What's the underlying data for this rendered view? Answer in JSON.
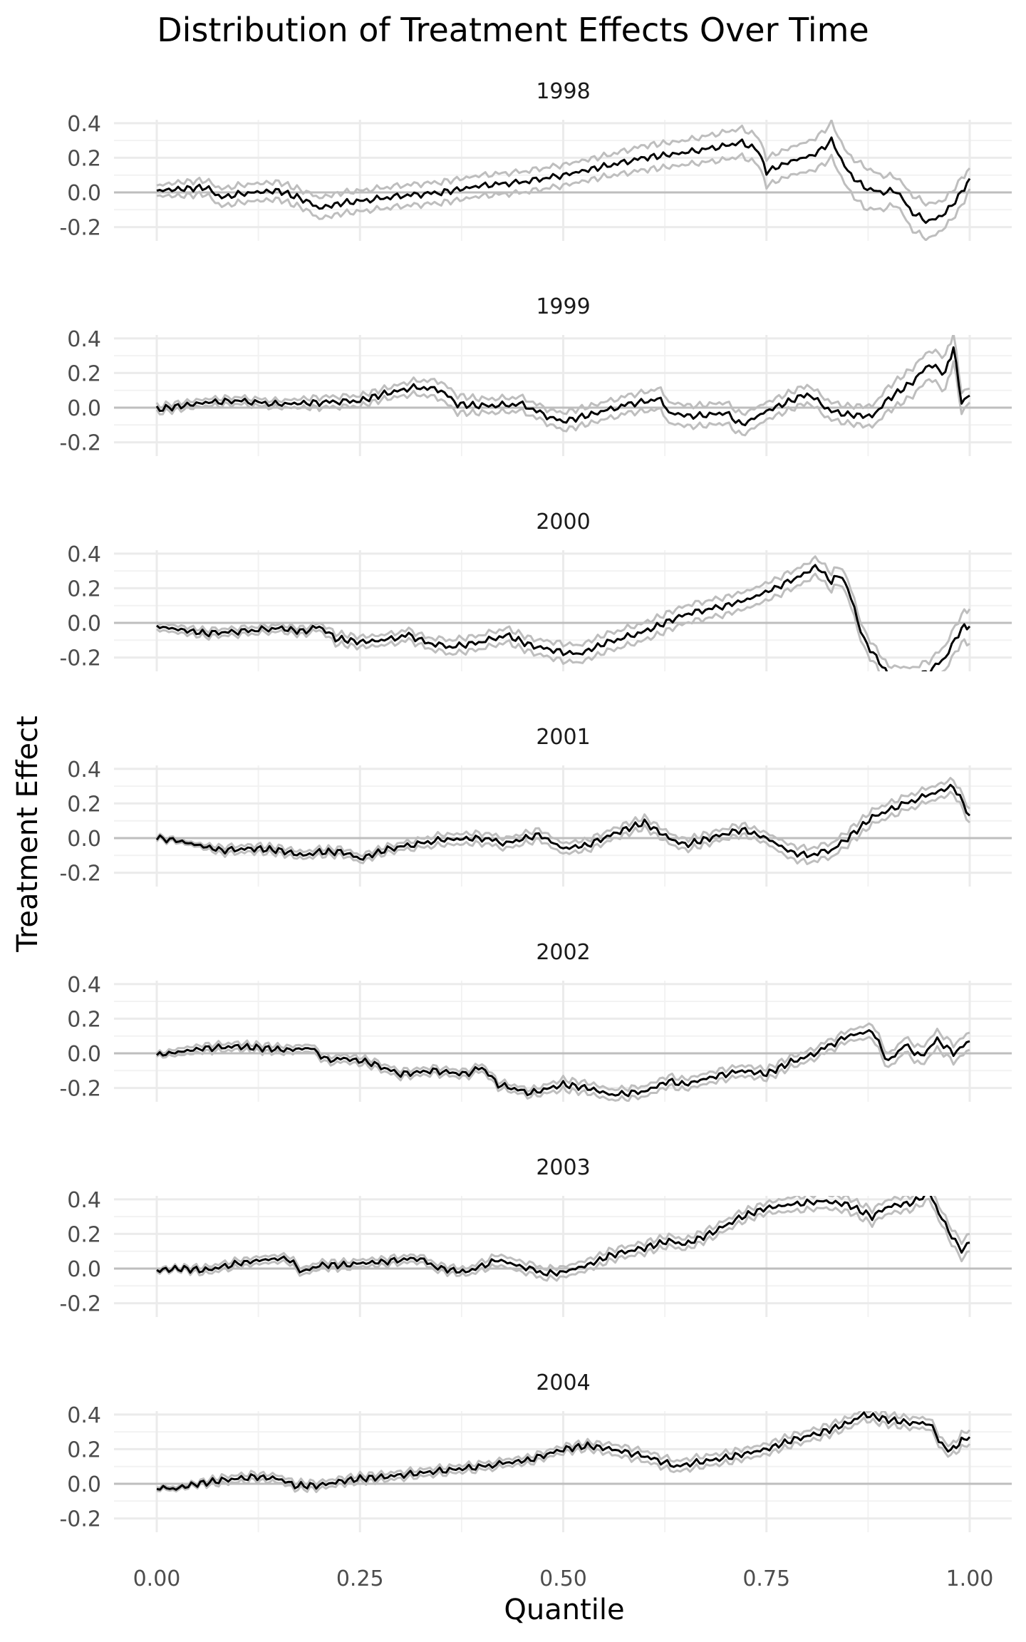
{
  "chart_data": {
    "type": "line",
    "title": "Distribution of Treatment Effects Over Time",
    "xlabel": "Quantile",
    "ylabel": "Treatment Effect",
    "xlim": [
      0,
      1
    ],
    "ylim": [
      -0.28,
      0.42
    ],
    "x_ticks": [
      "0.00",
      "0.25",
      "0.50",
      "0.75",
      "1.00"
    ],
    "x_tick_values": [
      0,
      0.25,
      0.5,
      0.75,
      1.0
    ],
    "y_ticks": [
      "0.4",
      "0.2",
      "0.0",
      "-0.2"
    ],
    "y_tick_values": [
      0.4,
      0.2,
      0.0,
      -0.2
    ],
    "grid": true,
    "series_description": {
      "estimate": "black line",
      "band": "grey lines (upper and lower bounds)"
    },
    "colors": {
      "estimate": "#000000",
      "band": "#bebebe",
      "zero_line": "#bebebe",
      "grid": "#ebebeb"
    },
    "panels": [
      {
        "label": "1998",
        "x": [
          0.0,
          0.03,
          0.06,
          0.08,
          0.1,
          0.12,
          0.15,
          0.18,
          0.2,
          0.23,
          0.25,
          0.3,
          0.35,
          0.4,
          0.45,
          0.5,
          0.55,
          0.6,
          0.65,
          0.7,
          0.72,
          0.74,
          0.75,
          0.78,
          0.81,
          0.83,
          0.85,
          0.87,
          0.89,
          0.91,
          0.93,
          0.95,
          0.97,
          0.99,
          1.0
        ],
        "y": [
          0.01,
          0.02,
          0.03,
          -0.03,
          -0.01,
          0.0,
          0.01,
          -0.04,
          -0.09,
          -0.06,
          -0.05,
          -0.02,
          0.0,
          0.04,
          0.06,
          0.1,
          0.15,
          0.2,
          0.23,
          0.27,
          0.29,
          0.24,
          0.12,
          0.18,
          0.22,
          0.3,
          0.12,
          0.03,
          0.0,
          0.01,
          -0.12,
          -0.17,
          -0.12,
          0.0,
          0.08
        ],
        "band": [
          0.03,
          0.04,
          0.04,
          0.05,
          0.05,
          0.05,
          0.05,
          0.05,
          0.06,
          0.06,
          0.06,
          0.06,
          0.06,
          0.06,
          0.06,
          0.06,
          0.06,
          0.07,
          0.07,
          0.08,
          0.08,
          0.08,
          0.08,
          0.08,
          0.09,
          0.1,
          0.1,
          0.12,
          0.1,
          0.08,
          0.1,
          0.1,
          0.08,
          0.08,
          0.06
        ]
      },
      {
        "label": "1999",
        "x": [
          0.0,
          0.03,
          0.06,
          0.1,
          0.15,
          0.2,
          0.25,
          0.28,
          0.32,
          0.35,
          0.37,
          0.4,
          0.45,
          0.48,
          0.5,
          0.55,
          0.58,
          0.62,
          0.63,
          0.66,
          0.7,
          0.72,
          0.75,
          0.8,
          0.83,
          0.85,
          0.88,
          0.9,
          0.93,
          0.95,
          0.97,
          0.98,
          0.99,
          1.0
        ],
        "y": [
          -0.01,
          0.01,
          0.03,
          0.04,
          0.02,
          0.03,
          0.04,
          0.08,
          0.12,
          0.1,
          0.02,
          0.01,
          0.02,
          -0.05,
          -0.08,
          -0.02,
          0.02,
          0.05,
          -0.03,
          -0.05,
          -0.03,
          -0.1,
          -0.02,
          0.08,
          -0.02,
          -0.04,
          -0.05,
          0.05,
          0.15,
          0.25,
          0.2,
          0.35,
          0.03,
          0.07
        ],
        "band": [
          0.02,
          0.02,
          0.02,
          0.02,
          0.02,
          0.03,
          0.03,
          0.03,
          0.04,
          0.05,
          0.05,
          0.04,
          0.04,
          0.04,
          0.05,
          0.05,
          0.05,
          0.06,
          0.06,
          0.06,
          0.06,
          0.06,
          0.05,
          0.05,
          0.05,
          0.05,
          0.06,
          0.07,
          0.08,
          0.08,
          0.1,
          0.08,
          0.06,
          0.04
        ]
      },
      {
        "label": "2000",
        "x": [
          0.0,
          0.03,
          0.06,
          0.1,
          0.15,
          0.18,
          0.2,
          0.22,
          0.25,
          0.28,
          0.31,
          0.33,
          0.36,
          0.4,
          0.43,
          0.46,
          0.5,
          0.52,
          0.55,
          0.6,
          0.65,
          0.7,
          0.73,
          0.76,
          0.8,
          0.81,
          0.83,
          0.84,
          0.85,
          0.87,
          0.9,
          0.93,
          0.95,
          0.97,
          0.99,
          1.0
        ],
        "y": [
          -0.02,
          -0.04,
          -0.06,
          -0.05,
          -0.03,
          -0.05,
          -0.02,
          -0.09,
          -0.11,
          -0.1,
          -0.07,
          -0.11,
          -0.14,
          -0.11,
          -0.07,
          -0.13,
          -0.17,
          -0.18,
          -0.12,
          -0.05,
          0.05,
          0.1,
          0.14,
          0.2,
          0.29,
          0.33,
          0.24,
          0.28,
          0.2,
          -0.1,
          -0.3,
          -0.32,
          -0.28,
          -0.2,
          -0.03,
          -0.02
        ],
        "band": [
          0.02,
          0.02,
          0.02,
          0.02,
          0.02,
          0.02,
          0.02,
          0.03,
          0.03,
          0.03,
          0.03,
          0.03,
          0.04,
          0.04,
          0.04,
          0.04,
          0.05,
          0.05,
          0.05,
          0.05,
          0.05,
          0.05,
          0.05,
          0.05,
          0.05,
          0.05,
          0.05,
          0.05,
          0.05,
          0.05,
          0.05,
          0.06,
          0.06,
          0.07,
          0.08,
          0.1
        ]
      },
      {
        "label": "2001",
        "x": [
          0.0,
          0.02,
          0.05,
          0.08,
          0.12,
          0.15,
          0.18,
          0.2,
          0.23,
          0.25,
          0.28,
          0.3,
          0.35,
          0.4,
          0.43,
          0.47,
          0.5,
          0.53,
          0.57,
          0.6,
          0.63,
          0.65,
          0.68,
          0.72,
          0.75,
          0.78,
          0.8,
          0.83,
          0.85,
          0.88,
          0.92,
          0.95,
          0.98,
          1.0
        ],
        "y": [
          0.0,
          -0.01,
          -0.04,
          -0.07,
          -0.06,
          -0.07,
          -0.1,
          -0.08,
          -0.08,
          -0.12,
          -0.07,
          -0.05,
          -0.01,
          0.0,
          -0.03,
          0.02,
          -0.06,
          -0.04,
          0.04,
          0.09,
          0.0,
          -0.04,
          0.0,
          0.05,
          0.0,
          -0.08,
          -0.1,
          -0.07,
          0.0,
          0.12,
          0.2,
          0.25,
          0.3,
          0.13
        ],
        "band": [
          0.01,
          0.01,
          0.01,
          0.02,
          0.02,
          0.02,
          0.02,
          0.02,
          0.02,
          0.02,
          0.02,
          0.02,
          0.03,
          0.03,
          0.03,
          0.03,
          0.03,
          0.03,
          0.03,
          0.03,
          0.03,
          0.03,
          0.03,
          0.03,
          0.03,
          0.04,
          0.04,
          0.04,
          0.04,
          0.04,
          0.04,
          0.04,
          0.04,
          0.04
        ]
      },
      {
        "label": "2002",
        "x": [
          0.0,
          0.03,
          0.06,
          0.1,
          0.13,
          0.16,
          0.19,
          0.21,
          0.23,
          0.26,
          0.3,
          0.34,
          0.38,
          0.4,
          0.42,
          0.46,
          0.5,
          0.53,
          0.56,
          0.6,
          0.63,
          0.65,
          0.68,
          0.72,
          0.75,
          0.78,
          0.8,
          0.83,
          0.85,
          0.88,
          0.9,
          0.92,
          0.94,
          0.96,
          0.98,
          1.0
        ],
        "y": [
          -0.01,
          0.01,
          0.03,
          0.04,
          0.03,
          0.02,
          0.03,
          -0.04,
          -0.03,
          -0.05,
          -0.12,
          -0.1,
          -0.12,
          -0.08,
          -0.18,
          -0.23,
          -0.18,
          -0.2,
          -0.24,
          -0.22,
          -0.16,
          -0.18,
          -0.14,
          -0.1,
          -0.12,
          -0.05,
          -0.02,
          0.05,
          0.1,
          0.13,
          -0.05,
          0.05,
          -0.02,
          0.08,
          0.0,
          0.07
        ],
        "band": [
          0.01,
          0.02,
          0.02,
          0.02,
          0.02,
          0.02,
          0.02,
          0.02,
          0.02,
          0.02,
          0.02,
          0.02,
          0.02,
          0.02,
          0.02,
          0.02,
          0.03,
          0.03,
          0.03,
          0.03,
          0.03,
          0.03,
          0.03,
          0.03,
          0.03,
          0.03,
          0.03,
          0.03,
          0.03,
          0.04,
          0.04,
          0.04,
          0.05,
          0.05,
          0.05,
          0.05
        ]
      },
      {
        "label": "2003",
        "x": [
          0.0,
          0.03,
          0.06,
          0.1,
          0.13,
          0.16,
          0.18,
          0.2,
          0.23,
          0.25,
          0.28,
          0.32,
          0.35,
          0.38,
          0.42,
          0.45,
          0.48,
          0.5,
          0.53,
          0.56,
          0.6,
          0.63,
          0.65,
          0.68,
          0.72,
          0.75,
          0.78,
          0.82,
          0.85,
          0.88,
          0.9,
          0.93,
          0.95,
          0.97,
          0.99,
          1.0
        ],
        "y": [
          -0.01,
          0.0,
          -0.01,
          0.03,
          0.05,
          0.06,
          -0.02,
          0.02,
          0.02,
          0.03,
          0.04,
          0.06,
          0.0,
          -0.02,
          0.05,
          0.01,
          -0.03,
          -0.02,
          0.02,
          0.08,
          0.12,
          0.16,
          0.14,
          0.2,
          0.3,
          0.35,
          0.37,
          0.39,
          0.37,
          0.3,
          0.36,
          0.38,
          0.44,
          0.25,
          0.1,
          0.15
        ],
        "band": [
          0.01,
          0.01,
          0.02,
          0.02,
          0.02,
          0.02,
          0.02,
          0.02,
          0.02,
          0.02,
          0.02,
          0.02,
          0.02,
          0.02,
          0.03,
          0.03,
          0.03,
          0.03,
          0.03,
          0.03,
          0.03,
          0.03,
          0.03,
          0.03,
          0.03,
          0.03,
          0.04,
          0.04,
          0.04,
          0.04,
          0.04,
          0.04,
          0.04,
          0.04,
          0.05,
          0.05
        ]
      },
      {
        "label": "2004",
        "x": [
          0.0,
          0.02,
          0.05,
          0.08,
          0.12,
          0.15,
          0.17,
          0.2,
          0.22,
          0.25,
          0.28,
          0.32,
          0.36,
          0.4,
          0.43,
          0.46,
          0.5,
          0.53,
          0.56,
          0.6,
          0.64,
          0.66,
          0.7,
          0.75,
          0.78,
          0.82,
          0.85,
          0.87,
          0.9,
          0.93,
          0.95,
          0.97,
          0.98,
          0.99,
          1.0
        ],
        "y": [
          -0.02,
          -0.03,
          0.0,
          0.02,
          0.04,
          0.03,
          -0.01,
          -0.01,
          0.01,
          0.03,
          0.04,
          0.06,
          0.08,
          0.1,
          0.12,
          0.14,
          0.2,
          0.22,
          0.2,
          0.16,
          0.1,
          0.12,
          0.15,
          0.2,
          0.25,
          0.3,
          0.35,
          0.4,
          0.37,
          0.35,
          0.35,
          0.2,
          0.2,
          0.25,
          0.27
        ],
        "band": [
          0.01,
          0.01,
          0.01,
          0.02,
          0.02,
          0.02,
          0.02,
          0.02,
          0.02,
          0.02,
          0.02,
          0.02,
          0.02,
          0.02,
          0.02,
          0.02,
          0.02,
          0.02,
          0.03,
          0.03,
          0.03,
          0.03,
          0.03,
          0.03,
          0.03,
          0.03,
          0.03,
          0.03,
          0.03,
          0.03,
          0.03,
          0.03,
          0.03,
          0.04,
          0.04
        ]
      }
    ]
  }
}
